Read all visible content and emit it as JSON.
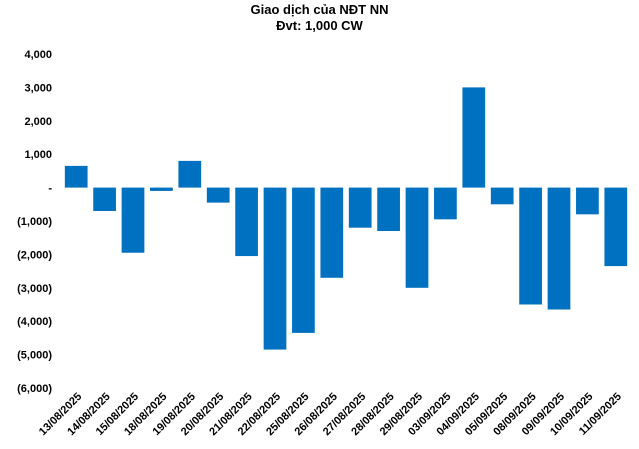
{
  "chart_data": {
    "type": "bar",
    "title": "Giao dịch của NĐT NN",
    "subtitle": "Đvt: 1,000 CW",
    "categories": [
      "13/08/2025",
      "14/08/2025",
      "15/08/2025",
      "18/08/2025",
      "19/08/2025",
      "20/08/2025",
      "21/08/2025",
      "22/08/2025",
      "25/08/2025",
      "26/08/2025",
      "27/08/2025",
      "28/08/2025",
      "29/08/2025",
      "03/09/2025",
      "04/09/2025",
      "05/09/2025",
      "08/09/2025",
      "09/09/2025",
      "10/09/2025",
      "11/09/2025"
    ],
    "values": [
      650,
      -700,
      -1950,
      -100,
      800,
      -450,
      -2050,
      -4850,
      -4350,
      -2700,
      -1200,
      -1300,
      -3000,
      -950,
      3000,
      -500,
      -3500,
      -3650,
      -800,
      -2350
    ],
    "ylim": [
      -6000,
      4000
    ],
    "yticks": [
      4000,
      3000,
      2000,
      1000,
      0,
      -1000,
      -2000,
      -3000,
      -4000,
      -5000,
      -6000
    ],
    "ytick_labels": [
      "4,000",
      "3,000",
      "2,000",
      "1,000",
      "-",
      "(1,000)",
      "(2,000)",
      "(3,000)",
      "(4,000)",
      "(5,000)",
      "(6,000)"
    ],
    "bar_color": "#0070c0",
    "grid": false,
    "xlabel": "",
    "ylabel": ""
  }
}
